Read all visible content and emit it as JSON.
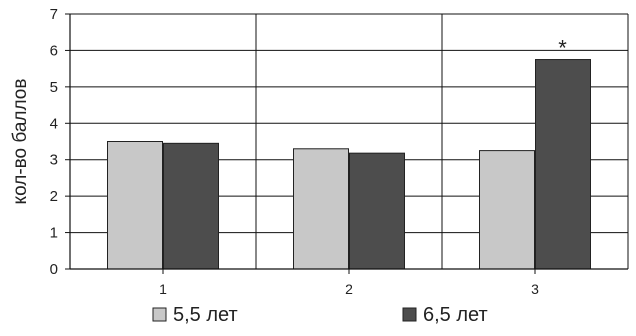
{
  "chart_data": {
    "type": "bar",
    "categories": [
      "1",
      "2",
      "3"
    ],
    "series": [
      {
        "name": "5,5 лет",
        "values": [
          3.5,
          3.3,
          3.25
        ],
        "color": "#c8c8c8"
      },
      {
        "name": "6,5 лет",
        "values": [
          3.45,
          3.18,
          5.75
        ],
        "color": "#4d4d4d"
      }
    ],
    "ylabel": "кол-во баллов",
    "ylim": [
      0,
      7
    ],
    "yticks": [
      0,
      1,
      2,
      3,
      4,
      5,
      6,
      7
    ],
    "grid": "horizontal",
    "legend_position": "bottom",
    "annotations": [
      {
        "text": "*",
        "category": "3",
        "series": "6,5 лет"
      }
    ]
  }
}
